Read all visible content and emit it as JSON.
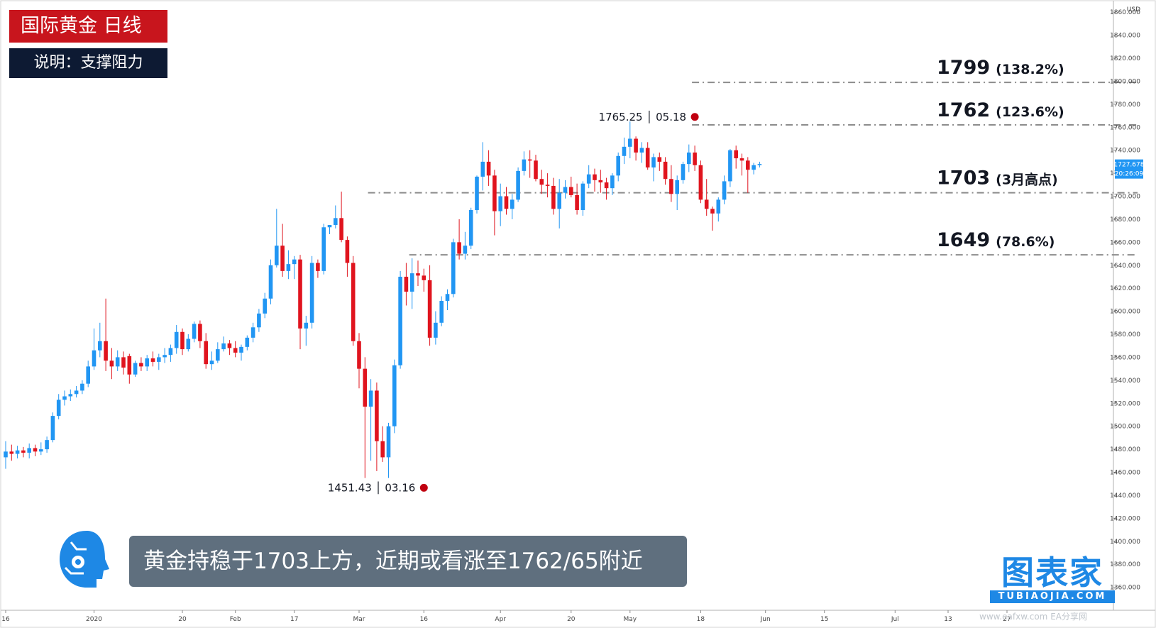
{
  "header": {
    "title": "国际黄金  日线",
    "subtitle": "说明：支撑阻力"
  },
  "caption": "黄金持稳于1703上方，近期或看涨至1762/65附近",
  "brand": {
    "name": "图表家",
    "domain": "TUBIAOJIA.COM",
    "watermark": "www.eafxw.com  EA分享网"
  },
  "colors": {
    "up": "#2196f3",
    "down": "#e0141e",
    "level": "#8c8c8c",
    "badge_red": "#c8151d",
    "badge_dark": "#0d1a33",
    "price_tag": "#2196f3"
  },
  "chart_data": {
    "type": "candlestick",
    "symbol": "XAUUSD",
    "timeframe": "1D",
    "currency": "USD",
    "ylim": [
      1340,
      1870
    ],
    "y_ticks": [
      1360,
      1380,
      1400,
      1420,
      1440,
      1460,
      1480,
      1500,
      1520,
      1540,
      1560,
      1580,
      1600,
      1620,
      1640,
      1660,
      1680,
      1700,
      1720,
      1740,
      1760,
      1780,
      1800,
      1820,
      1840,
      1860
    ],
    "y_tick_labels": [
      "1360.000",
      "1380.000",
      "1400.000",
      "1420.000",
      "1440.000",
      "1460.000",
      "1480.000",
      "1500.000",
      "1520.000",
      "1540.000",
      "1560.000",
      "1580.000",
      "1600.000",
      "1620.000",
      "1640.000",
      "1660.000",
      "1680.000",
      "1700.000",
      "1720.000",
      "1740.000",
      "1760.000",
      "1780.000",
      "1800.000",
      "1820.000",
      "1840.000",
      "1860.000"
    ],
    "x_ticks": [
      {
        "label": "16",
        "bar": 0
      },
      {
        "label": "2020",
        "bar": 15
      },
      {
        "label": "20",
        "bar": 30
      },
      {
        "label": "Feb",
        "bar": 39
      },
      {
        "label": "17",
        "bar": 49
      },
      {
        "label": "Mar",
        "bar": 60
      },
      {
        "label": "16",
        "bar": 71
      },
      {
        "label": "Apr",
        "bar": 84
      },
      {
        "label": "20",
        "bar": 96
      },
      {
        "label": "May",
        "bar": 106
      },
      {
        "label": "18",
        "bar": 118
      },
      {
        "label": "Jun",
        "bar": 129
      },
      {
        "label": "15",
        "bar": 139
      },
      {
        "label": "Jul",
        "bar": 151
      },
      {
        "label": "13",
        "bar": 160
      },
      {
        "label": "27",
        "bar": 170
      }
    ],
    "bars": [
      {
        "o": 1473,
        "h": 1487,
        "l": 1463,
        "c": 1478
      },
      {
        "o": 1478,
        "h": 1484,
        "l": 1470,
        "c": 1476
      },
      {
        "o": 1476,
        "h": 1483,
        "l": 1472,
        "c": 1479
      },
      {
        "o": 1479,
        "h": 1482,
        "l": 1473,
        "c": 1477
      },
      {
        "o": 1477,
        "h": 1485,
        "l": 1472,
        "c": 1481
      },
      {
        "o": 1481,
        "h": 1484,
        "l": 1474,
        "c": 1478
      },
      {
        "o": 1478,
        "h": 1486,
        "l": 1475,
        "c": 1480
      },
      {
        "o": 1480,
        "h": 1491,
        "l": 1477,
        "c": 1488
      },
      {
        "o": 1488,
        "h": 1512,
        "l": 1486,
        "c": 1509
      },
      {
        "o": 1509,
        "h": 1528,
        "l": 1506,
        "c": 1523
      },
      {
        "o": 1523,
        "h": 1531,
        "l": 1518,
        "c": 1526
      },
      {
        "o": 1526,
        "h": 1532,
        "l": 1522,
        "c": 1528
      },
      {
        "o": 1528,
        "h": 1535,
        "l": 1525,
        "c": 1531
      },
      {
        "o": 1531,
        "h": 1540,
        "l": 1528,
        "c": 1537
      },
      {
        "o": 1537,
        "h": 1557,
        "l": 1534,
        "c": 1552
      },
      {
        "o": 1552,
        "h": 1585,
        "l": 1549,
        "c": 1566
      },
      {
        "o": 1566,
        "h": 1590,
        "l": 1560,
        "c": 1574
      },
      {
        "o": 1574,
        "h": 1611,
        "l": 1548,
        "c": 1557
      },
      {
        "o": 1557,
        "h": 1568,
        "l": 1541,
        "c": 1552
      },
      {
        "o": 1552,
        "h": 1566,
        "l": 1548,
        "c": 1560
      },
      {
        "o": 1560,
        "h": 1565,
        "l": 1545,
        "c": 1551
      },
      {
        "o": 1561,
        "h": 1563,
        "l": 1537,
        "c": 1545
      },
      {
        "o": 1545,
        "h": 1557,
        "l": 1543,
        "c": 1555
      },
      {
        "o": 1555,
        "h": 1560,
        "l": 1548,
        "c": 1552
      },
      {
        "o": 1552,
        "h": 1562,
        "l": 1548,
        "c": 1559
      },
      {
        "o": 1559,
        "h": 1565,
        "l": 1552,
        "c": 1556
      },
      {
        "o": 1556,
        "h": 1563,
        "l": 1549,
        "c": 1560
      },
      {
        "o": 1560,
        "h": 1568,
        "l": 1555,
        "c": 1562
      },
      {
        "o": 1562,
        "h": 1571,
        "l": 1556,
        "c": 1568
      },
      {
        "o": 1568,
        "h": 1588,
        "l": 1563,
        "c": 1582
      },
      {
        "o": 1582,
        "h": 1585,
        "l": 1562,
        "c": 1567
      },
      {
        "o": 1567,
        "h": 1580,
        "l": 1565,
        "c": 1576
      },
      {
        "o": 1576,
        "h": 1591,
        "l": 1573,
        "c": 1589
      },
      {
        "o": 1589,
        "h": 1592,
        "l": 1568,
        "c": 1574
      },
      {
        "o": 1574,
        "h": 1581,
        "l": 1550,
        "c": 1554
      },
      {
        "o": 1554,
        "h": 1565,
        "l": 1549,
        "c": 1557
      },
      {
        "o": 1557,
        "h": 1573,
        "l": 1555,
        "c": 1567
      },
      {
        "o": 1567,
        "h": 1578,
        "l": 1565,
        "c": 1572
      },
      {
        "o": 1572,
        "h": 1575,
        "l": 1562,
        "c": 1568
      },
      {
        "o": 1568,
        "h": 1574,
        "l": 1560,
        "c": 1564
      },
      {
        "o": 1564,
        "h": 1571,
        "l": 1557,
        "c": 1569
      },
      {
        "o": 1569,
        "h": 1579,
        "l": 1566,
        "c": 1577
      },
      {
        "o": 1577,
        "h": 1590,
        "l": 1573,
        "c": 1586
      },
      {
        "o": 1586,
        "h": 1602,
        "l": 1582,
        "c": 1598
      },
      {
        "o": 1598,
        "h": 1616,
        "l": 1594,
        "c": 1611
      },
      {
        "o": 1611,
        "h": 1645,
        "l": 1606,
        "c": 1640
      },
      {
        "o": 1640,
        "h": 1689,
        "l": 1638,
        "c": 1657
      },
      {
        "o": 1657,
        "h": 1676,
        "l": 1630,
        "c": 1635
      },
      {
        "o": 1635,
        "h": 1653,
        "l": 1628,
        "c": 1641
      },
      {
        "o": 1641,
        "h": 1648,
        "l": 1628,
        "c": 1645
      },
      {
        "o": 1645,
        "h": 1649,
        "l": 1567,
        "c": 1585
      },
      {
        "o": 1585,
        "h": 1596,
        "l": 1570,
        "c": 1590
      },
      {
        "o": 1590,
        "h": 1648,
        "l": 1585,
        "c": 1642
      },
      {
        "o": 1642,
        "h": 1645,
        "l": 1629,
        "c": 1635
      },
      {
        "o": 1635,
        "h": 1676,
        "l": 1632,
        "c": 1673
      },
      {
        "o": 1673,
        "h": 1675,
        "l": 1667,
        "c": 1675
      },
      {
        "o": 1675,
        "h": 1692,
        "l": 1672,
        "c": 1681
      },
      {
        "o": 1681,
        "h": 1704,
        "l": 1660,
        "c": 1662
      },
      {
        "o": 1662,
        "h": 1665,
        "l": 1630,
        "c": 1642
      },
      {
        "o": 1642,
        "h": 1648,
        "l": 1570,
        "c": 1574
      },
      {
        "o": 1574,
        "h": 1581,
        "l": 1533,
        "c": 1550
      },
      {
        "o": 1550,
        "h": 1560,
        "l": 1455,
        "c": 1517
      },
      {
        "o": 1517,
        "h": 1541,
        "l": 1470,
        "c": 1531
      },
      {
        "o": 1531,
        "h": 1538,
        "l": 1461,
        "c": 1487
      },
      {
        "o": 1487,
        "h": 1500,
        "l": 1469,
        "c": 1473
      },
      {
        "o": 1473,
        "h": 1503,
        "l": 1455,
        "c": 1500
      },
      {
        "o": 1500,
        "h": 1558,
        "l": 1494,
        "c": 1553
      },
      {
        "o": 1553,
        "h": 1635,
        "l": 1550,
        "c": 1630
      },
      {
        "o": 1630,
        "h": 1642,
        "l": 1605,
        "c": 1617
      },
      {
        "o": 1617,
        "h": 1646,
        "l": 1602,
        "c": 1633
      },
      {
        "o": 1633,
        "h": 1644,
        "l": 1622,
        "c": 1631
      },
      {
        "o": 1631,
        "h": 1637,
        "l": 1617,
        "c": 1627
      },
      {
        "o": 1627,
        "h": 1640,
        "l": 1570,
        "c": 1577
      },
      {
        "o": 1577,
        "h": 1600,
        "l": 1571,
        "c": 1590
      },
      {
        "o": 1590,
        "h": 1613,
        "l": 1587,
        "c": 1609
      },
      {
        "o": 1609,
        "h": 1619,
        "l": 1601,
        "c": 1615
      },
      {
        "o": 1615,
        "h": 1663,
        "l": 1612,
        "c": 1660
      },
      {
        "o": 1660,
        "h": 1680,
        "l": 1645,
        "c": 1650
      },
      {
        "o": 1650,
        "h": 1669,
        "l": 1645,
        "c": 1657
      },
      {
        "o": 1657,
        "h": 1690,
        "l": 1654,
        "c": 1688
      },
      {
        "o": 1688,
        "h": 1718,
        "l": 1685,
        "c": 1717
      },
      {
        "o": 1717,
        "h": 1747,
        "l": 1705,
        "c": 1730
      },
      {
        "o": 1730,
        "h": 1740,
        "l": 1709,
        "c": 1718
      },
      {
        "o": 1718,
        "h": 1723,
        "l": 1666,
        "c": 1687
      },
      {
        "o": 1687,
        "h": 1711,
        "l": 1674,
        "c": 1700
      },
      {
        "o": 1700,
        "h": 1708,
        "l": 1684,
        "c": 1689
      },
      {
        "o": 1689,
        "h": 1702,
        "l": 1680,
        "c": 1697
      },
      {
        "o": 1697,
        "h": 1725,
        "l": 1695,
        "c": 1722
      },
      {
        "o": 1722,
        "h": 1739,
        "l": 1718,
        "c": 1732
      },
      {
        "o": 1732,
        "h": 1740,
        "l": 1716,
        "c": 1731
      },
      {
        "o": 1731,
        "h": 1736,
        "l": 1713,
        "c": 1715
      },
      {
        "o": 1715,
        "h": 1723,
        "l": 1702,
        "c": 1710
      },
      {
        "o": 1710,
        "h": 1720,
        "l": 1699,
        "c": 1709
      },
      {
        "o": 1709,
        "h": 1716,
        "l": 1684,
        "c": 1689
      },
      {
        "o": 1689,
        "h": 1715,
        "l": 1672,
        "c": 1703
      },
      {
        "o": 1703,
        "h": 1714,
        "l": 1698,
        "c": 1708
      },
      {
        "o": 1708,
        "h": 1717,
        "l": 1699,
        "c": 1701
      },
      {
        "o": 1701,
        "h": 1711,
        "l": 1684,
        "c": 1688
      },
      {
        "o": 1688,
        "h": 1713,
        "l": 1683,
        "c": 1711
      },
      {
        "o": 1711,
        "h": 1727,
        "l": 1707,
        "c": 1719
      },
      {
        "o": 1719,
        "h": 1724,
        "l": 1704,
        "c": 1714
      },
      {
        "o": 1714,
        "h": 1723,
        "l": 1703,
        "c": 1712
      },
      {
        "o": 1712,
        "h": 1716,
        "l": 1697,
        "c": 1707
      },
      {
        "o": 1707,
        "h": 1720,
        "l": 1701,
        "c": 1718
      },
      {
        "o": 1718,
        "h": 1738,
        "l": 1713,
        "c": 1735
      },
      {
        "o": 1735,
        "h": 1751,
        "l": 1728,
        "c": 1743
      },
      {
        "o": 1743,
        "h": 1765,
        "l": 1733,
        "c": 1750
      },
      {
        "o": 1750,
        "h": 1752,
        "l": 1731,
        "c": 1738
      },
      {
        "o": 1738,
        "h": 1747,
        "l": 1729,
        "c": 1742
      },
      {
        "o": 1742,
        "h": 1747,
        "l": 1723,
        "c": 1725
      },
      {
        "o": 1725,
        "h": 1737,
        "l": 1713,
        "c": 1734
      },
      {
        "o": 1734,
        "h": 1738,
        "l": 1722,
        "c": 1730
      },
      {
        "o": 1730,
        "h": 1734,
        "l": 1710,
        "c": 1715
      },
      {
        "o": 1715,
        "h": 1727,
        "l": 1695,
        "c": 1702
      },
      {
        "o": 1702,
        "h": 1718,
        "l": 1688,
        "c": 1714
      },
      {
        "o": 1714,
        "h": 1730,
        "l": 1711,
        "c": 1728
      },
      {
        "o": 1728,
        "h": 1745,
        "l": 1721,
        "c": 1738
      },
      {
        "o": 1738,
        "h": 1744,
        "l": 1722,
        "c": 1727
      },
      {
        "o": 1727,
        "h": 1731,
        "l": 1694,
        "c": 1697
      },
      {
        "o": 1697,
        "h": 1715,
        "l": 1683,
        "c": 1689
      },
      {
        "o": 1689,
        "h": 1691,
        "l": 1670,
        "c": 1685
      },
      {
        "o": 1685,
        "h": 1699,
        "l": 1678,
        "c": 1697
      },
      {
        "o": 1697,
        "h": 1718,
        "l": 1693,
        "c": 1713
      },
      {
        "o": 1713,
        "h": 1741,
        "l": 1708,
        "c": 1740
      },
      {
        "o": 1740,
        "h": 1744,
        "l": 1724,
        "c": 1733
      },
      {
        "o": 1733,
        "h": 1737,
        "l": 1718,
        "c": 1731
      },
      {
        "o": 1731,
        "h": 1734,
        "l": 1703,
        "c": 1723
      },
      {
        "o": 1723,
        "h": 1729,
        "l": 1719,
        "c": 1727
      },
      {
        "o": 1727,
        "h": 1730,
        "l": 1725,
        "c": 1728
      }
    ],
    "levels": [
      {
        "price": 1799,
        "price_label": "1799",
        "note": "(138.2%)",
        "start_bar": 117
      },
      {
        "price": 1762,
        "price_label": "1762",
        "note": "(123.6%)",
        "start_bar": 117
      },
      {
        "price": 1703,
        "price_label": "1703",
        "note": "(3月高点)",
        "start_bar": 62
      },
      {
        "price": 1649,
        "price_label": "1649",
        "note": "(78.6%)",
        "start_bar": 69
      }
    ],
    "annotations": [
      {
        "bar": 117,
        "price": 1765.25,
        "text": "1765.25 │ 05.18",
        "anchor": "end",
        "dir": "up"
      },
      {
        "bar": 71,
        "price": 1451.43,
        "text": "1451.43 │ 03.16",
        "anchor": "end",
        "dir": "down"
      }
    ],
    "last_price": {
      "value": "1727.678",
      "countdown": "20:26:09",
      "price": 1727.678
    }
  }
}
